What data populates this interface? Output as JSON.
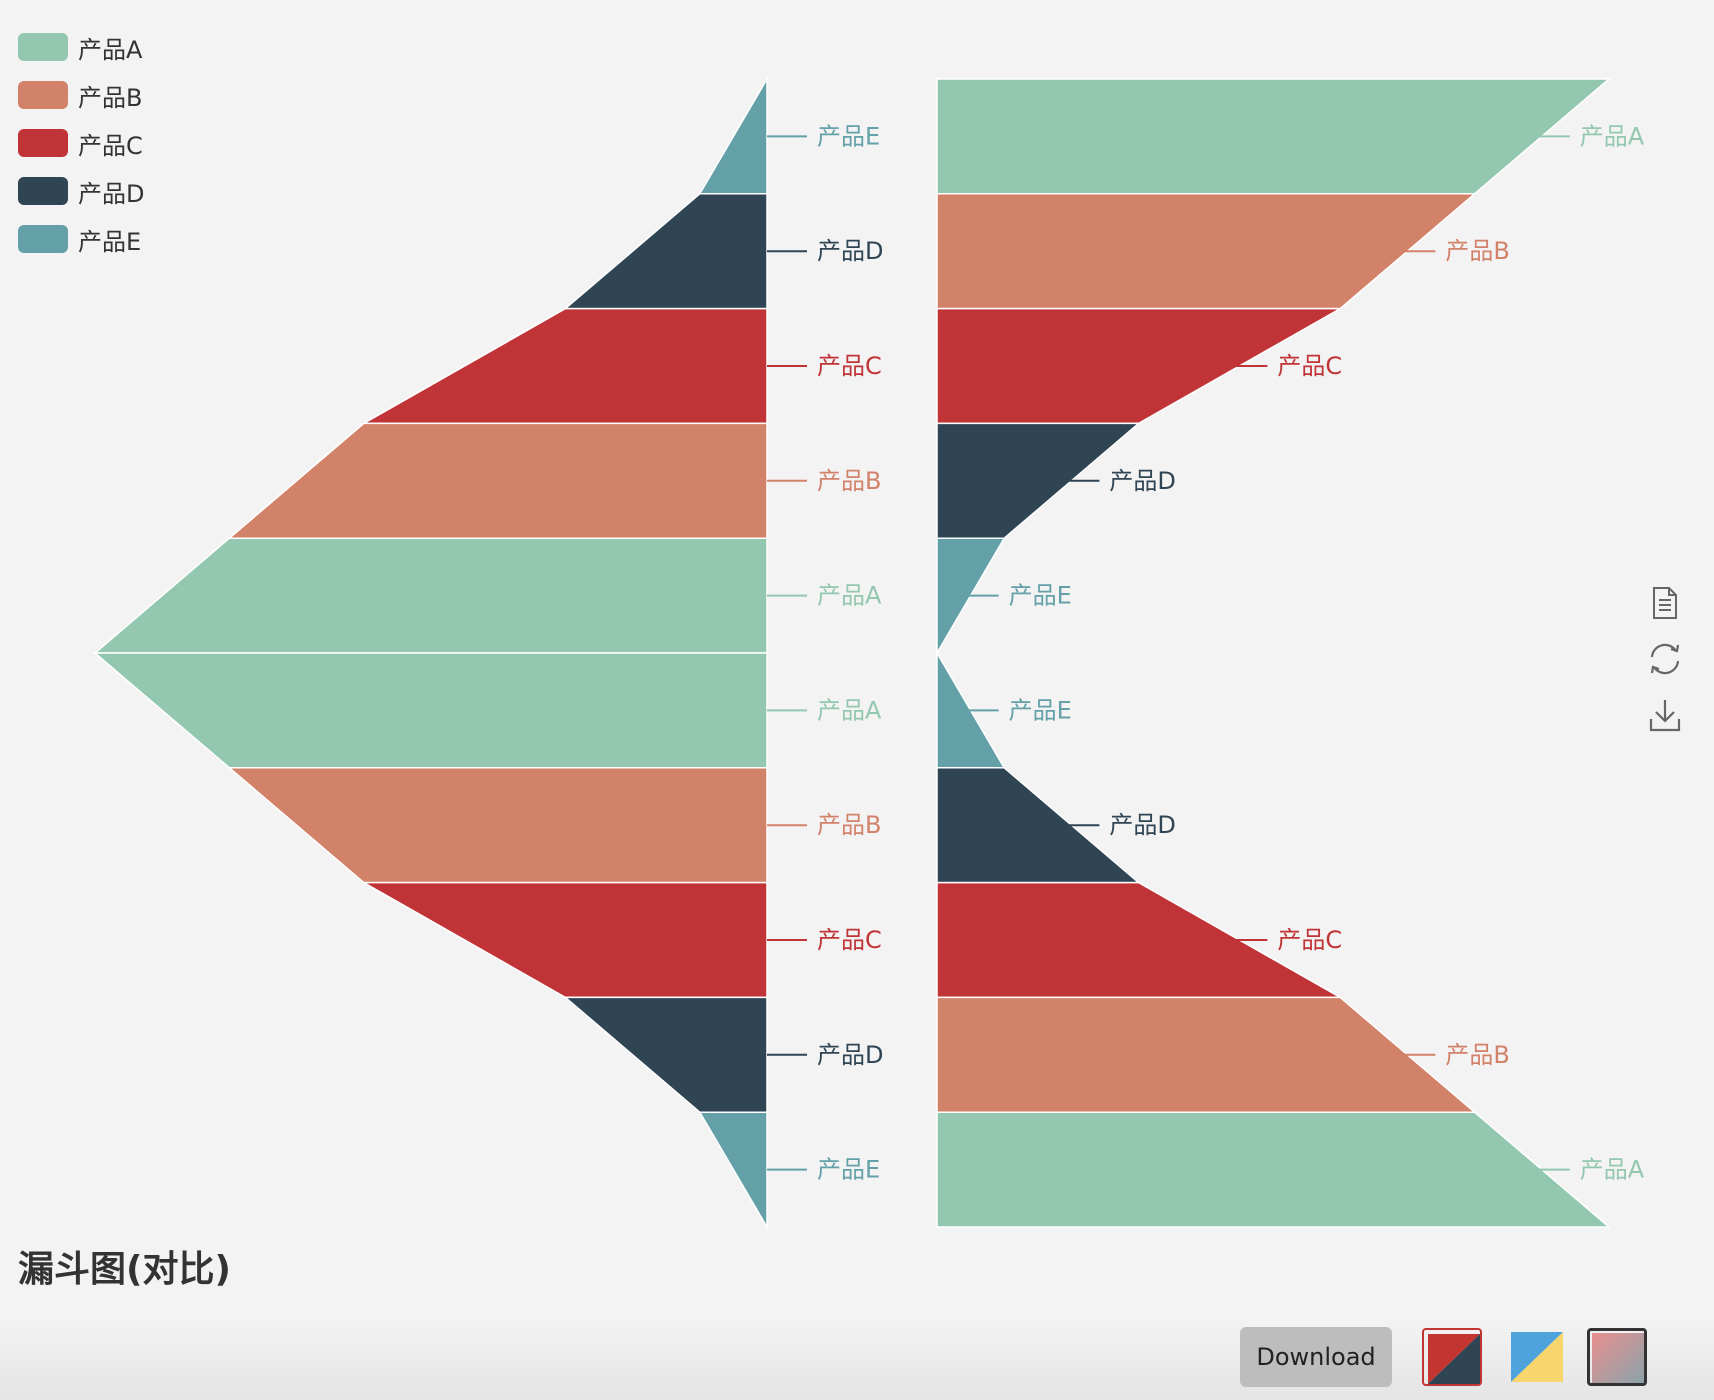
{
  "chart_data": {
    "type": "funnel",
    "title": "漏斗图(对比)",
    "legend": [
      "产品A",
      "产品B",
      "产品C",
      "产品D",
      "产品E"
    ],
    "colors": [
      "#93c7af",
      "#d3826a",
      "#c03437",
      "#2f4554",
      "#63a0a8"
    ],
    "funnels": [
      {
        "position": "left",
        "sort": "ascending",
        "align": "right",
        "labels": [
          "产品E",
          "产品D",
          "产品C",
          "产品B",
          "产品A"
        ],
        "values": [
          10,
          30,
          60,
          80,
          100
        ]
      },
      {
        "position": "right",
        "sort": "descending",
        "align": "left",
        "labels": [
          "产品A",
          "产品B",
          "产品C",
          "产品D",
          "产品E"
        ],
        "values": [
          100,
          80,
          60,
          30,
          10
        ]
      },
      {
        "position": "left",
        "sort": "descending",
        "align": "right",
        "labels": [
          "产品A",
          "产品B",
          "产品C",
          "产品D",
          "产品E"
        ],
        "values": [
          100,
          80,
          60,
          30,
          10
        ]
      },
      {
        "position": "right",
        "sort": "ascending",
        "align": "left",
        "labels": [
          "产品E",
          "产品D",
          "产品C",
          "产品B",
          "产品A"
        ],
        "values": [
          10,
          30,
          60,
          80,
          100
        ]
      }
    ]
  },
  "toolbox": {
    "icons": [
      "data-view-icon",
      "refresh-icon",
      "save-image-icon"
    ]
  },
  "footer": {
    "download_label": "Download",
    "themes": [
      "theme-red-dark",
      "theme-blue-yellow",
      "theme-pink-gray"
    ]
  }
}
